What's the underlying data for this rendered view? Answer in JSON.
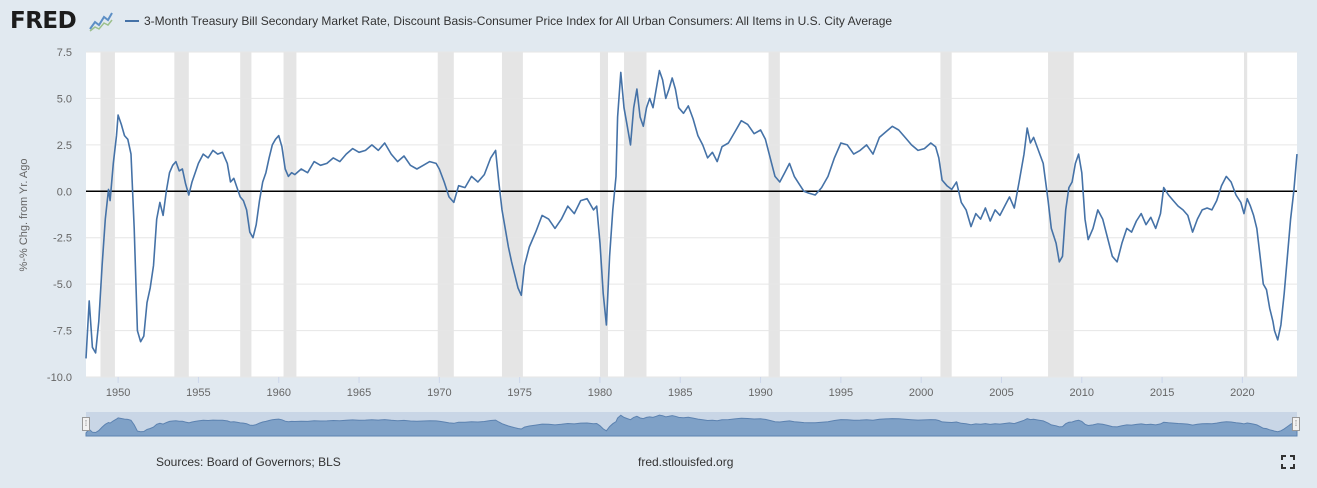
{
  "header": {
    "logo_text": "FRED",
    "logo_icon": "fred-line-icon",
    "legend_label": "3-Month Treasury Bill Secondary Market Rate, Discount Basis-Consumer Price Index for All Urban Consumers: All Items in U.S. City Average"
  },
  "footer": {
    "sources": "Sources: Board of Governors; BLS",
    "site": "fred.stlouisfed.org"
  },
  "icons": {
    "fullscreen": "fullscreen-icon"
  },
  "chart_data": {
    "type": "line",
    "title": "",
    "xlabel": "",
    "ylabel": "%-% Chg. from Yr. Ago",
    "xlim": [
      1948.0,
      2023.4
    ],
    "ylim": [
      -10.0,
      7.5
    ],
    "yticks": [
      "-10.0",
      "-7.5",
      "-5.0",
      "-2.5",
      "0.0",
      "2.5",
      "5.0",
      "7.5"
    ],
    "xticks": [
      "1950",
      "1955",
      "1960",
      "1965",
      "1970",
      "1975",
      "1980",
      "1985",
      "1990",
      "1995",
      "2000",
      "2005",
      "2010",
      "2015",
      "2020"
    ],
    "zero_line": 0,
    "grid": "horizontal",
    "line_color": "#4572a7",
    "recession_color": "#e5e5e5",
    "recessions": [
      [
        1948.9,
        1949.8
      ],
      [
        1953.5,
        1954.4
      ],
      [
        1957.6,
        1958.3
      ],
      [
        1960.3,
        1961.1
      ],
      [
        1969.9,
        1970.9
      ],
      [
        1973.9,
        1975.2
      ],
      [
        1980.0,
        1980.5
      ],
      [
        1981.5,
        1982.9
      ],
      [
        1990.5,
        1991.2
      ],
      [
        2001.2,
        2001.9
      ],
      [
        2007.9,
        2009.5
      ],
      [
        2020.1,
        2020.3
      ]
    ],
    "series": [
      {
        "values": [
          [
            1948.0,
            -9.0
          ],
          [
            1948.2,
            -5.9
          ],
          [
            1948.4,
            -8.4
          ],
          [
            1948.6,
            -8.7
          ],
          [
            1948.8,
            -7.0
          ],
          [
            1949.0,
            -4.0
          ],
          [
            1949.2,
            -1.5
          ],
          [
            1949.4,
            0.1
          ],
          [
            1949.5,
            -0.5
          ],
          [
            1949.7,
            1.5
          ],
          [
            1949.9,
            3.0
          ],
          [
            1950.0,
            4.1
          ],
          [
            1950.2,
            3.6
          ],
          [
            1950.4,
            3.0
          ],
          [
            1950.6,
            2.8
          ],
          [
            1950.8,
            2.0
          ],
          [
            1951.0,
            -2.0
          ],
          [
            1951.2,
            -7.5
          ],
          [
            1951.4,
            -8.1
          ],
          [
            1951.6,
            -7.8
          ],
          [
            1951.8,
            -6.0
          ],
          [
            1952.0,
            -5.2
          ],
          [
            1952.2,
            -4.0
          ],
          [
            1952.4,
            -1.5
          ],
          [
            1952.6,
            -0.6
          ],
          [
            1952.8,
            -1.3
          ],
          [
            1953.0,
            0.0
          ],
          [
            1953.2,
            1.0
          ],
          [
            1953.4,
            1.4
          ],
          [
            1953.6,
            1.6
          ],
          [
            1953.8,
            1.1
          ],
          [
            1954.0,
            1.2
          ],
          [
            1954.2,
            0.4
          ],
          [
            1954.4,
            -0.2
          ],
          [
            1954.6,
            0.5
          ],
          [
            1954.8,
            1.0
          ],
          [
            1955.0,
            1.5
          ],
          [
            1955.3,
            2.0
          ],
          [
            1955.6,
            1.8
          ],
          [
            1955.9,
            2.2
          ],
          [
            1956.2,
            2.0
          ],
          [
            1956.5,
            2.1
          ],
          [
            1956.8,
            1.5
          ],
          [
            1957.0,
            0.5
          ],
          [
            1957.2,
            0.7
          ],
          [
            1957.4,
            0.2
          ],
          [
            1957.6,
            -0.3
          ],
          [
            1957.8,
            -0.5
          ],
          [
            1958.0,
            -1.0
          ],
          [
            1958.2,
            -2.2
          ],
          [
            1958.4,
            -2.5
          ],
          [
            1958.6,
            -1.8
          ],
          [
            1958.8,
            -0.5
          ],
          [
            1959.0,
            0.5
          ],
          [
            1959.2,
            1.0
          ],
          [
            1959.4,
            1.8
          ],
          [
            1959.6,
            2.5
          ],
          [
            1959.8,
            2.8
          ],
          [
            1960.0,
            3.0
          ],
          [
            1960.2,
            2.4
          ],
          [
            1960.4,
            1.2
          ],
          [
            1960.6,
            0.8
          ],
          [
            1960.8,
            1.0
          ],
          [
            1961.0,
            0.9
          ],
          [
            1961.4,
            1.2
          ],
          [
            1961.8,
            1.0
          ],
          [
            1962.2,
            1.6
          ],
          [
            1962.6,
            1.4
          ],
          [
            1963.0,
            1.5
          ],
          [
            1963.4,
            1.8
          ],
          [
            1963.8,
            1.6
          ],
          [
            1964.2,
            2.0
          ],
          [
            1964.6,
            2.3
          ],
          [
            1965.0,
            2.1
          ],
          [
            1965.4,
            2.2
          ],
          [
            1965.8,
            2.5
          ],
          [
            1966.2,
            2.2
          ],
          [
            1966.6,
            2.6
          ],
          [
            1967.0,
            2.0
          ],
          [
            1967.4,
            1.6
          ],
          [
            1967.8,
            1.9
          ],
          [
            1968.2,
            1.4
          ],
          [
            1968.6,
            1.2
          ],
          [
            1969.0,
            1.4
          ],
          [
            1969.4,
            1.6
          ],
          [
            1969.8,
            1.5
          ],
          [
            1970.0,
            1.2
          ],
          [
            1970.3,
            0.5
          ],
          [
            1970.6,
            -0.3
          ],
          [
            1970.9,
            -0.6
          ],
          [
            1971.2,
            0.3
          ],
          [
            1971.6,
            0.2
          ],
          [
            1972.0,
            0.8
          ],
          [
            1972.4,
            0.5
          ],
          [
            1972.8,
            0.9
          ],
          [
            1973.2,
            1.8
          ],
          [
            1973.5,
            2.2
          ],
          [
            1973.7,
            0.5
          ],
          [
            1973.9,
            -1.0
          ],
          [
            1974.1,
            -2.0
          ],
          [
            1974.3,
            -3.0
          ],
          [
            1974.5,
            -3.8
          ],
          [
            1974.7,
            -4.5
          ],
          [
            1974.9,
            -5.2
          ],
          [
            1975.1,
            -5.6
          ],
          [
            1975.3,
            -4.0
          ],
          [
            1975.6,
            -3.0
          ],
          [
            1976.0,
            -2.2
          ],
          [
            1976.4,
            -1.3
          ],
          [
            1976.8,
            -1.5
          ],
          [
            1977.2,
            -2.0
          ],
          [
            1977.6,
            -1.5
          ],
          [
            1978.0,
            -0.8
          ],
          [
            1978.4,
            -1.2
          ],
          [
            1978.8,
            -0.5
          ],
          [
            1979.2,
            -0.4
          ],
          [
            1979.6,
            -1.0
          ],
          [
            1979.8,
            -0.8
          ],
          [
            1980.0,
            -2.8
          ],
          [
            1980.2,
            -5.5
          ],
          [
            1980.4,
            -7.2
          ],
          [
            1980.6,
            -3.5
          ],
          [
            1980.8,
            -1.0
          ],
          [
            1981.0,
            0.8
          ],
          [
            1981.1,
            4.0
          ],
          [
            1981.3,
            6.4
          ],
          [
            1981.5,
            4.5
          ],
          [
            1981.7,
            3.5
          ],
          [
            1981.9,
            2.5
          ],
          [
            1982.1,
            4.5
          ],
          [
            1982.3,
            5.5
          ],
          [
            1982.5,
            4.0
          ],
          [
            1982.7,
            3.5
          ],
          [
            1982.9,
            4.5
          ],
          [
            1983.1,
            5.0
          ],
          [
            1983.3,
            4.5
          ],
          [
            1983.5,
            5.5
          ],
          [
            1983.7,
            6.5
          ],
          [
            1983.9,
            6.0
          ],
          [
            1984.1,
            5.0
          ],
          [
            1984.3,
            5.5
          ],
          [
            1984.5,
            6.1
          ],
          [
            1984.7,
            5.5
          ],
          [
            1984.9,
            4.5
          ],
          [
            1985.2,
            4.2
          ],
          [
            1985.5,
            4.6
          ],
          [
            1985.8,
            3.9
          ],
          [
            1986.1,
            3.0
          ],
          [
            1986.4,
            2.5
          ],
          [
            1986.7,
            1.8
          ],
          [
            1987.0,
            2.1
          ],
          [
            1987.3,
            1.6
          ],
          [
            1987.6,
            2.4
          ],
          [
            1988.0,
            2.6
          ],
          [
            1988.4,
            3.2
          ],
          [
            1988.8,
            3.8
          ],
          [
            1989.2,
            3.6
          ],
          [
            1989.6,
            3.1
          ],
          [
            1990.0,
            3.3
          ],
          [
            1990.3,
            2.8
          ],
          [
            1990.6,
            1.8
          ],
          [
            1990.9,
            0.8
          ],
          [
            1991.2,
            0.5
          ],
          [
            1991.5,
            1.0
          ],
          [
            1991.8,
            1.5
          ],
          [
            1992.1,
            0.8
          ],
          [
            1992.4,
            0.4
          ],
          [
            1992.7,
            0.0
          ],
          [
            1993.0,
            -0.1
          ],
          [
            1993.4,
            -0.2
          ],
          [
            1993.8,
            0.2
          ],
          [
            1994.2,
            0.8
          ],
          [
            1994.6,
            1.8
          ],
          [
            1995.0,
            2.6
          ],
          [
            1995.4,
            2.5
          ],
          [
            1995.8,
            2.0
          ],
          [
            1996.2,
            2.2
          ],
          [
            1996.6,
            2.5
          ],
          [
            1997.0,
            2.0
          ],
          [
            1997.4,
            2.9
          ],
          [
            1997.8,
            3.2
          ],
          [
            1998.2,
            3.5
          ],
          [
            1998.6,
            3.3
          ],
          [
            1999.0,
            2.9
          ],
          [
            1999.4,
            2.5
          ],
          [
            1999.8,
            2.2
          ],
          [
            2000.2,
            2.3
          ],
          [
            2000.6,
            2.6
          ],
          [
            2000.9,
            2.4
          ],
          [
            2001.1,
            1.8
          ],
          [
            2001.3,
            0.6
          ],
          [
            2001.6,
            0.3
          ],
          [
            2001.9,
            0.1
          ],
          [
            2002.2,
            0.5
          ],
          [
            2002.5,
            -0.6
          ],
          [
            2002.8,
            -1.0
          ],
          [
            2003.1,
            -1.9
          ],
          [
            2003.4,
            -1.2
          ],
          [
            2003.7,
            -1.5
          ],
          [
            2004.0,
            -0.9
          ],
          [
            2004.3,
            -1.6
          ],
          [
            2004.6,
            -1.0
          ],
          [
            2004.9,
            -1.3
          ],
          [
            2005.2,
            -0.8
          ],
          [
            2005.5,
            -0.3
          ],
          [
            2005.8,
            -0.9
          ],
          [
            2006.1,
            0.5
          ],
          [
            2006.4,
            2.0
          ],
          [
            2006.6,
            3.4
          ],
          [
            2006.8,
            2.6
          ],
          [
            2007.0,
            2.9
          ],
          [
            2007.3,
            2.2
          ],
          [
            2007.6,
            1.5
          ],
          [
            2007.9,
            -0.5
          ],
          [
            2008.1,
            -2.0
          ],
          [
            2008.4,
            -2.8
          ],
          [
            2008.6,
            -3.8
          ],
          [
            2008.8,
            -3.5
          ],
          [
            2009.0,
            -1.0
          ],
          [
            2009.2,
            0.2
          ],
          [
            2009.4,
            0.5
          ],
          [
            2009.6,
            1.5
          ],
          [
            2009.8,
            2.0
          ],
          [
            2010.0,
            1.0
          ],
          [
            2010.2,
            -1.5
          ],
          [
            2010.4,
            -2.6
          ],
          [
            2010.7,
            -2.0
          ],
          [
            2011.0,
            -1.0
          ],
          [
            2011.3,
            -1.5
          ],
          [
            2011.6,
            -2.5
          ],
          [
            2011.9,
            -3.5
          ],
          [
            2012.2,
            -3.8
          ],
          [
            2012.5,
            -2.8
          ],
          [
            2012.8,
            -2.0
          ],
          [
            2013.1,
            -2.2
          ],
          [
            2013.4,
            -1.6
          ],
          [
            2013.7,
            -1.2
          ],
          [
            2014.0,
            -1.8
          ],
          [
            2014.3,
            -1.4
          ],
          [
            2014.6,
            -2.0
          ],
          [
            2014.9,
            -1.2
          ],
          [
            2015.1,
            0.2
          ],
          [
            2015.4,
            -0.2
          ],
          [
            2015.7,
            -0.5
          ],
          [
            2016.0,
            -0.8
          ],
          [
            2016.3,
            -1.0
          ],
          [
            2016.6,
            -1.3
          ],
          [
            2016.9,
            -2.2
          ],
          [
            2017.2,
            -1.5
          ],
          [
            2017.5,
            -1.0
          ],
          [
            2017.8,
            -0.9
          ],
          [
            2018.1,
            -1.0
          ],
          [
            2018.4,
            -0.5
          ],
          [
            2018.7,
            0.3
          ],
          [
            2019.0,
            0.8
          ],
          [
            2019.3,
            0.5
          ],
          [
            2019.6,
            -0.2
          ],
          [
            2019.9,
            -0.6
          ],
          [
            2020.1,
            -1.2
          ],
          [
            2020.3,
            -0.4
          ],
          [
            2020.5,
            -0.8
          ],
          [
            2020.7,
            -1.3
          ],
          [
            2020.9,
            -2.0
          ],
          [
            2021.1,
            -3.5
          ],
          [
            2021.3,
            -5.0
          ],
          [
            2021.5,
            -5.3
          ],
          [
            2021.7,
            -6.3
          ],
          [
            2021.9,
            -7.0
          ],
          [
            2022.0,
            -7.5
          ],
          [
            2022.2,
            -8.0
          ],
          [
            2022.4,
            -7.2
          ],
          [
            2022.6,
            -5.5
          ],
          [
            2022.8,
            -3.5
          ],
          [
            2023.0,
            -1.5
          ],
          [
            2023.2,
            0.0
          ],
          [
            2023.4,
            2.0
          ]
        ]
      }
    ]
  }
}
